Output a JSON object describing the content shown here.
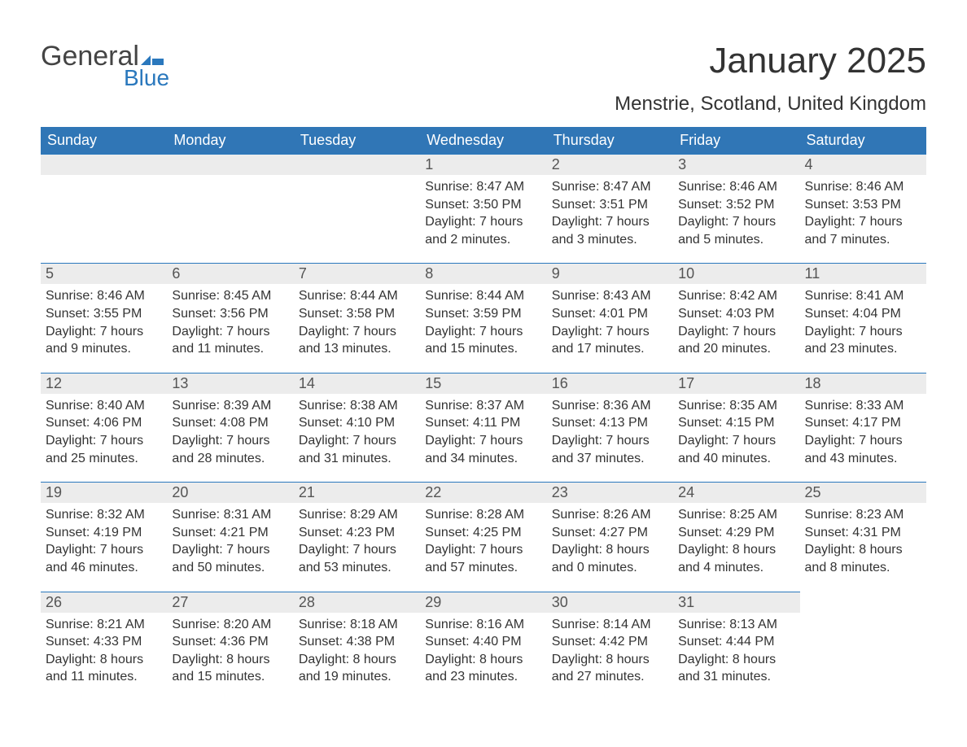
{
  "logo": {
    "general": "General",
    "blue": "Blue",
    "icon_color": "#2a78bd"
  },
  "title": "January 2025",
  "location": "Menstrie, Scotland, United Kingdom",
  "colors": {
    "header_bg": "#3076b6",
    "header_text": "#ffffff",
    "daynum_bg": "#ececec",
    "daynum_border": "#2a78bd",
    "text": "#333333",
    "page_bg": "#ffffff"
  },
  "fonts": {
    "title_size_pt": 33,
    "location_size_pt": 18,
    "weekday_size_pt": 14,
    "body_size_pt": 12
  },
  "weekdays": [
    "Sunday",
    "Monday",
    "Tuesday",
    "Wednesday",
    "Thursday",
    "Friday",
    "Saturday"
  ],
  "weeks": [
    [
      {
        "day": "",
        "sunrise": "",
        "sunset": "",
        "daylight": ""
      },
      {
        "day": "",
        "sunrise": "",
        "sunset": "",
        "daylight": ""
      },
      {
        "day": "",
        "sunrise": "",
        "sunset": "",
        "daylight": ""
      },
      {
        "day": "1",
        "sunrise": "Sunrise: 8:47 AM",
        "sunset": "Sunset: 3:50 PM",
        "daylight": "Daylight: 7 hours and 2 minutes."
      },
      {
        "day": "2",
        "sunrise": "Sunrise: 8:47 AM",
        "sunset": "Sunset: 3:51 PM",
        "daylight": "Daylight: 7 hours and 3 minutes."
      },
      {
        "day": "3",
        "sunrise": "Sunrise: 8:46 AM",
        "sunset": "Sunset: 3:52 PM",
        "daylight": "Daylight: 7 hours and 5 minutes."
      },
      {
        "day": "4",
        "sunrise": "Sunrise: 8:46 AM",
        "sunset": "Sunset: 3:53 PM",
        "daylight": "Daylight: 7 hours and 7 minutes."
      }
    ],
    [
      {
        "day": "5",
        "sunrise": "Sunrise: 8:46 AM",
        "sunset": "Sunset: 3:55 PM",
        "daylight": "Daylight: 7 hours and 9 minutes."
      },
      {
        "day": "6",
        "sunrise": "Sunrise: 8:45 AM",
        "sunset": "Sunset: 3:56 PM",
        "daylight": "Daylight: 7 hours and 11 minutes."
      },
      {
        "day": "7",
        "sunrise": "Sunrise: 8:44 AM",
        "sunset": "Sunset: 3:58 PM",
        "daylight": "Daylight: 7 hours and 13 minutes."
      },
      {
        "day": "8",
        "sunrise": "Sunrise: 8:44 AM",
        "sunset": "Sunset: 3:59 PM",
        "daylight": "Daylight: 7 hours and 15 minutes."
      },
      {
        "day": "9",
        "sunrise": "Sunrise: 8:43 AM",
        "sunset": "Sunset: 4:01 PM",
        "daylight": "Daylight: 7 hours and 17 minutes."
      },
      {
        "day": "10",
        "sunrise": "Sunrise: 8:42 AM",
        "sunset": "Sunset: 4:03 PM",
        "daylight": "Daylight: 7 hours and 20 minutes."
      },
      {
        "day": "11",
        "sunrise": "Sunrise: 8:41 AM",
        "sunset": "Sunset: 4:04 PM",
        "daylight": "Daylight: 7 hours and 23 minutes."
      }
    ],
    [
      {
        "day": "12",
        "sunrise": "Sunrise: 8:40 AM",
        "sunset": "Sunset: 4:06 PM",
        "daylight": "Daylight: 7 hours and 25 minutes."
      },
      {
        "day": "13",
        "sunrise": "Sunrise: 8:39 AM",
        "sunset": "Sunset: 4:08 PM",
        "daylight": "Daylight: 7 hours and 28 minutes."
      },
      {
        "day": "14",
        "sunrise": "Sunrise: 8:38 AM",
        "sunset": "Sunset: 4:10 PM",
        "daylight": "Daylight: 7 hours and 31 minutes."
      },
      {
        "day": "15",
        "sunrise": "Sunrise: 8:37 AM",
        "sunset": "Sunset: 4:11 PM",
        "daylight": "Daylight: 7 hours and 34 minutes."
      },
      {
        "day": "16",
        "sunrise": "Sunrise: 8:36 AM",
        "sunset": "Sunset: 4:13 PM",
        "daylight": "Daylight: 7 hours and 37 minutes."
      },
      {
        "day": "17",
        "sunrise": "Sunrise: 8:35 AM",
        "sunset": "Sunset: 4:15 PM",
        "daylight": "Daylight: 7 hours and 40 minutes."
      },
      {
        "day": "18",
        "sunrise": "Sunrise: 8:33 AM",
        "sunset": "Sunset: 4:17 PM",
        "daylight": "Daylight: 7 hours and 43 minutes."
      }
    ],
    [
      {
        "day": "19",
        "sunrise": "Sunrise: 8:32 AM",
        "sunset": "Sunset: 4:19 PM",
        "daylight": "Daylight: 7 hours and 46 minutes."
      },
      {
        "day": "20",
        "sunrise": "Sunrise: 8:31 AM",
        "sunset": "Sunset: 4:21 PM",
        "daylight": "Daylight: 7 hours and 50 minutes."
      },
      {
        "day": "21",
        "sunrise": "Sunrise: 8:29 AM",
        "sunset": "Sunset: 4:23 PM",
        "daylight": "Daylight: 7 hours and 53 minutes."
      },
      {
        "day": "22",
        "sunrise": "Sunrise: 8:28 AM",
        "sunset": "Sunset: 4:25 PM",
        "daylight": "Daylight: 7 hours and 57 minutes."
      },
      {
        "day": "23",
        "sunrise": "Sunrise: 8:26 AM",
        "sunset": "Sunset: 4:27 PM",
        "daylight": "Daylight: 8 hours and 0 minutes."
      },
      {
        "day": "24",
        "sunrise": "Sunrise: 8:25 AM",
        "sunset": "Sunset: 4:29 PM",
        "daylight": "Daylight: 8 hours and 4 minutes."
      },
      {
        "day": "25",
        "sunrise": "Sunrise: 8:23 AM",
        "sunset": "Sunset: 4:31 PM",
        "daylight": "Daylight: 8 hours and 8 minutes."
      }
    ],
    [
      {
        "day": "26",
        "sunrise": "Sunrise: 8:21 AM",
        "sunset": "Sunset: 4:33 PM",
        "daylight": "Daylight: 8 hours and 11 minutes."
      },
      {
        "day": "27",
        "sunrise": "Sunrise: 8:20 AM",
        "sunset": "Sunset: 4:36 PM",
        "daylight": "Daylight: 8 hours and 15 minutes."
      },
      {
        "day": "28",
        "sunrise": "Sunrise: 8:18 AM",
        "sunset": "Sunset: 4:38 PM",
        "daylight": "Daylight: 8 hours and 19 minutes."
      },
      {
        "day": "29",
        "sunrise": "Sunrise: 8:16 AM",
        "sunset": "Sunset: 4:40 PM",
        "daylight": "Daylight: 8 hours and 23 minutes."
      },
      {
        "day": "30",
        "sunrise": "Sunrise: 8:14 AM",
        "sunset": "Sunset: 4:42 PM",
        "daylight": "Daylight: 8 hours and 27 minutes."
      },
      {
        "day": "31",
        "sunrise": "Sunrise: 8:13 AM",
        "sunset": "Sunset: 4:44 PM",
        "daylight": "Daylight: 8 hours and 31 minutes."
      },
      {
        "day": "",
        "sunrise": "",
        "sunset": "",
        "daylight": ""
      }
    ]
  ]
}
